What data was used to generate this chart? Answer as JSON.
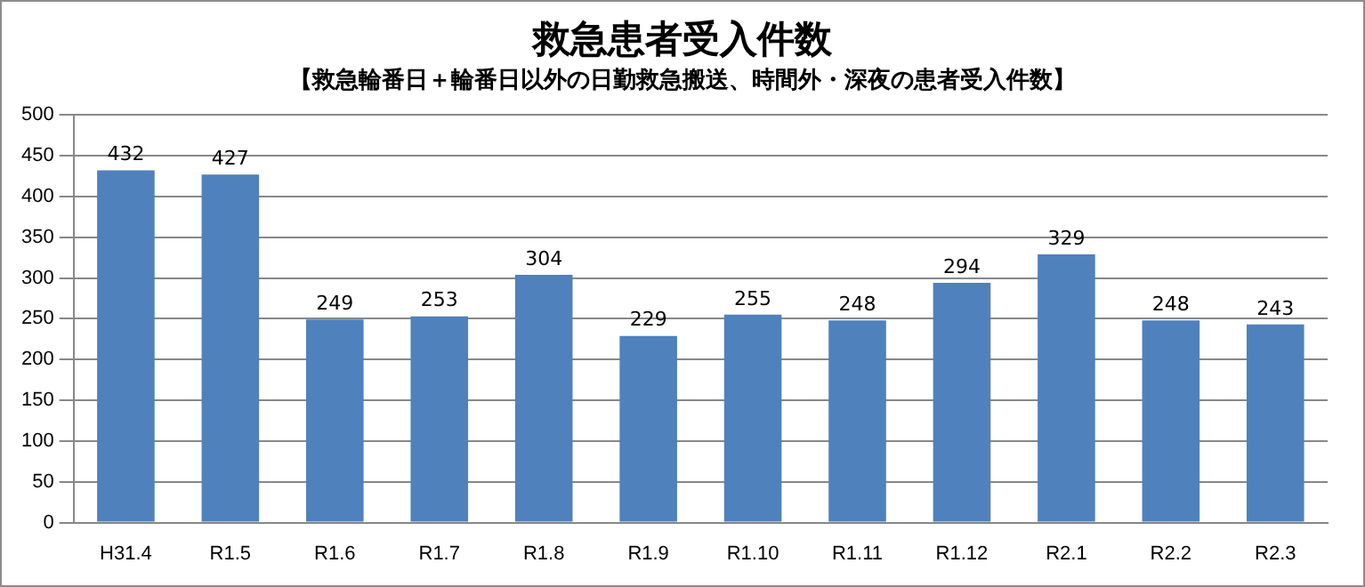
{
  "chart_data": {
    "type": "bar",
    "title": "救急患者受入件数",
    "subtitle": "【救急輪番日＋輪番日以外の日勤救急搬送、時間外・深夜の患者受入件数】",
    "categories": [
      "H31.4",
      "R1.5",
      "R1.6",
      "R1.7",
      "R1.8",
      "R1.9",
      "R1.10",
      "R1.11",
      "R1.12",
      "R2.1",
      "R2.2",
      "R2.3"
    ],
    "values": [
      432,
      427,
      249,
      253,
      304,
      229,
      255,
      248,
      294,
      329,
      248,
      243
    ],
    "color": "#4f81bd",
    "ylim": [
      0,
      500
    ],
    "yticks": [
      0,
      50,
      100,
      150,
      200,
      250,
      300,
      350,
      400,
      450,
      500
    ],
    "grid": "y",
    "data_labels": true,
    "legend": false
  }
}
